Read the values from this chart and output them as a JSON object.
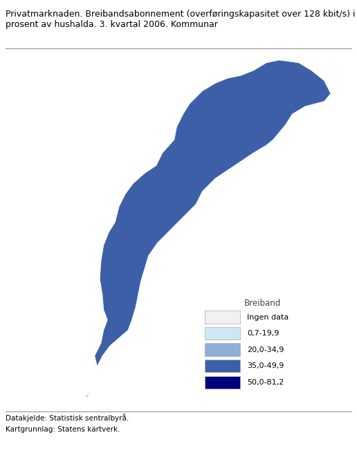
{
  "title_line1": "Privatmarknaden. Breibandsabonnement (overføringskapasitet over 128 kbit/s) i",
  "title_line2": "prosent av hushalda. 3. kvartal 2006. Kommunar",
  "legend_title": "Breiband",
  "legend_items": [
    {
      "label": "Ingen data",
      "color": "#f0f0f0"
    },
    {
      "label": "0,7-19,9",
      "color": "#cce8f4"
    },
    {
      "label": "20,0-34,9",
      "color": "#8fafd6"
    },
    {
      "label": "35,0-49,9",
      "color": "#3d5fa8"
    },
    {
      "label": "50,0-81,2",
      "color": "#00007f"
    }
  ],
  "source_line1": "Datakjelde: Statistisk sentralbyrå.",
  "source_line2": "Kartgrunnlag: Statens kartverk.",
  "background_color": "#ffffff",
  "title_fontsize": 9.0,
  "legend_fontsize": 8.5,
  "source_fontsize": 7.5,
  "map_xlim": [
    4.5,
    31.5
  ],
  "map_ylim": [
    57.5,
    71.5
  ]
}
